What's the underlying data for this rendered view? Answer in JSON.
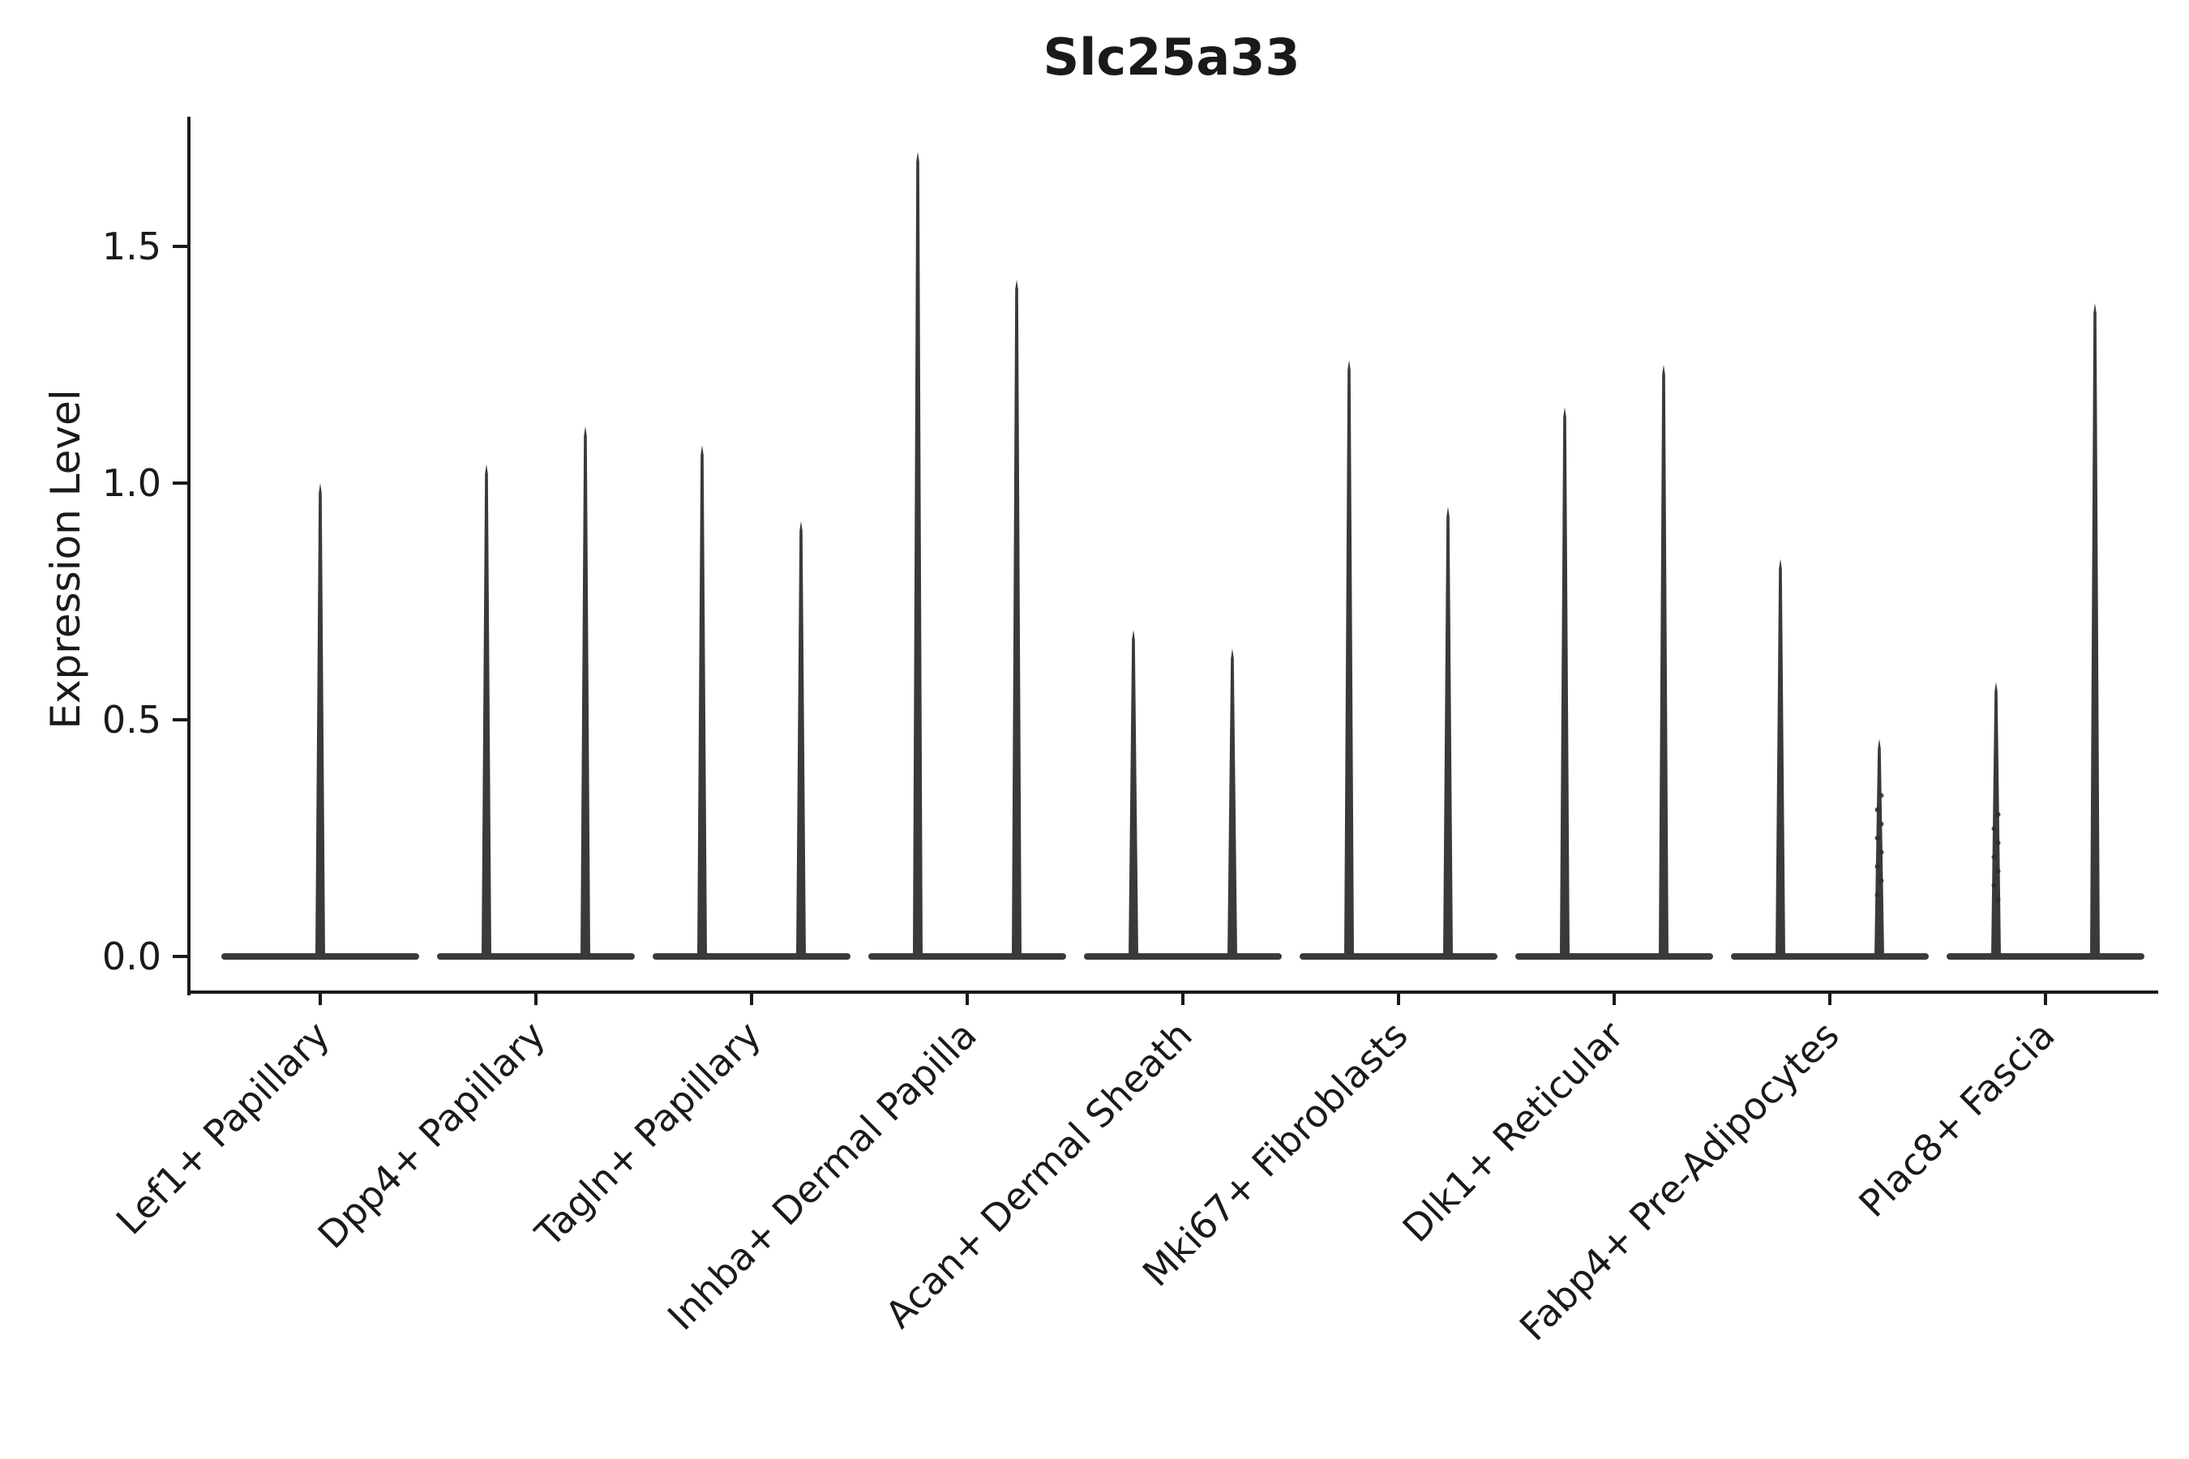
{
  "figure": {
    "title": "Slc25a33"
  },
  "chart_data": {
    "type": "violin",
    "title": "Slc25a33",
    "xlabel": "",
    "ylabel": "Expression Level",
    "ylim": [
      -0.08,
      1.78
    ],
    "yticks": [
      "0.0",
      "0.5",
      "1.0",
      "1.5"
    ],
    "ytick_values": [
      0.0,
      0.5,
      1.0,
      1.5
    ],
    "grid": false,
    "legend": "none",
    "violin_color": "#3a3a3a",
    "axis_color": "#1a1a1a",
    "baseline_value": 0.0,
    "categories": [
      "Lef1+ Papillary",
      "Dpp4+ Papillary",
      "Tagln+ Papillary",
      "Inhba+ Dermal Papilla",
      "Acan+ Dermal Sheath",
      "Mki67+ Fibroblasts",
      "Dlk1+ Reticular",
      "Fabp4+ Pre-Adipocytes",
      "Plac8+ Fascia"
    ],
    "groups": [
      {
        "category": "Lef1+ Papillary",
        "violins": [
          {
            "max": 1.0
          }
        ]
      },
      {
        "category": "Dpp4+ Papillary",
        "violins": [
          {
            "max": 1.04
          },
          {
            "max": 1.12
          }
        ]
      },
      {
        "category": "Tagln+ Papillary",
        "violins": [
          {
            "max": 1.08
          },
          {
            "max": 0.92
          }
        ]
      },
      {
        "category": "Inhba+ Dermal Papilla",
        "violins": [
          {
            "max": 1.7
          },
          {
            "max": 1.43
          }
        ]
      },
      {
        "category": "Acan+ Dermal Sheath",
        "violins": [
          {
            "max": 0.69
          },
          {
            "max": 0.65
          }
        ]
      },
      {
        "category": "Mki67+ Fibroblasts",
        "violins": [
          {
            "max": 1.26
          },
          {
            "max": 0.95
          }
        ]
      },
      {
        "category": "Dlk1+ Reticular",
        "violins": [
          {
            "max": 1.16
          },
          {
            "max": 1.25
          }
        ]
      },
      {
        "category": "Fabp4+ Pre-Adipocytes",
        "violins": [
          {
            "max": 0.84
          },
          {
            "max": 0.46,
            "dots": [
              0.34,
              0.31,
              0.28,
              0.25,
              0.22,
              0.19,
              0.16,
              0.13
            ]
          }
        ]
      },
      {
        "category": "Plac8+ Fascia",
        "violins": [
          {
            "max": 0.58,
            "dots": [
              0.3,
              0.27,
              0.24,
              0.21,
              0.18,
              0.15,
              0.12
            ]
          },
          {
            "max": 1.38
          }
        ]
      }
    ]
  }
}
